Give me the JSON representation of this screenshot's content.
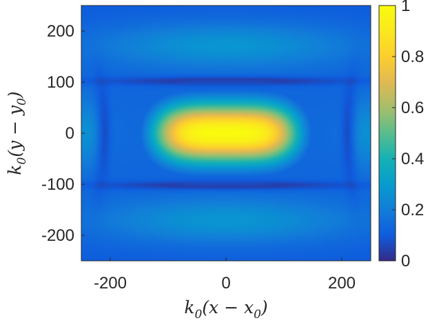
{
  "chart_data": {
    "type": "heatmap",
    "title": "",
    "xlabel": "k₀(x − x₀)",
    "ylabel": "k₀(y − y₀)",
    "xlim": [
      -250,
      250
    ],
    "ylim": [
      -250,
      250
    ],
    "xticks": [
      -200,
      0,
      200
    ],
    "yticks": [
      200,
      100,
      0,
      -100,
      -200
    ],
    "colorbar": {
      "colormap": "parula",
      "range": [
        0,
        1
      ],
      "ticks": [
        1,
        0.8,
        0.6,
        0.4,
        0.2,
        0
      ]
    },
    "features": [
      {
        "description": "central peak",
        "x": 0,
        "y": 0,
        "value": 1.0
      },
      {
        "description": "upper band",
        "y": 165,
        "value": 0.18
      },
      {
        "description": "lower band",
        "y": -165,
        "value": 0.18
      },
      {
        "description": "dark nodal line",
        "y": 100,
        "value": 0.03
      },
      {
        "description": "dark nodal line",
        "y": -100,
        "value": 0.03
      }
    ]
  },
  "labels": {
    "xlabel_k": "k",
    "xlabel_sub": "0",
    "xlabel_body": "(x − x",
    "xlabel_sub2": "0",
    "xlabel_end": ")",
    "ylabel_k": "k",
    "ylabel_sub": "0",
    "ylabel_body": "(y − y",
    "ylabel_sub2": "0",
    "ylabel_end": ")"
  }
}
